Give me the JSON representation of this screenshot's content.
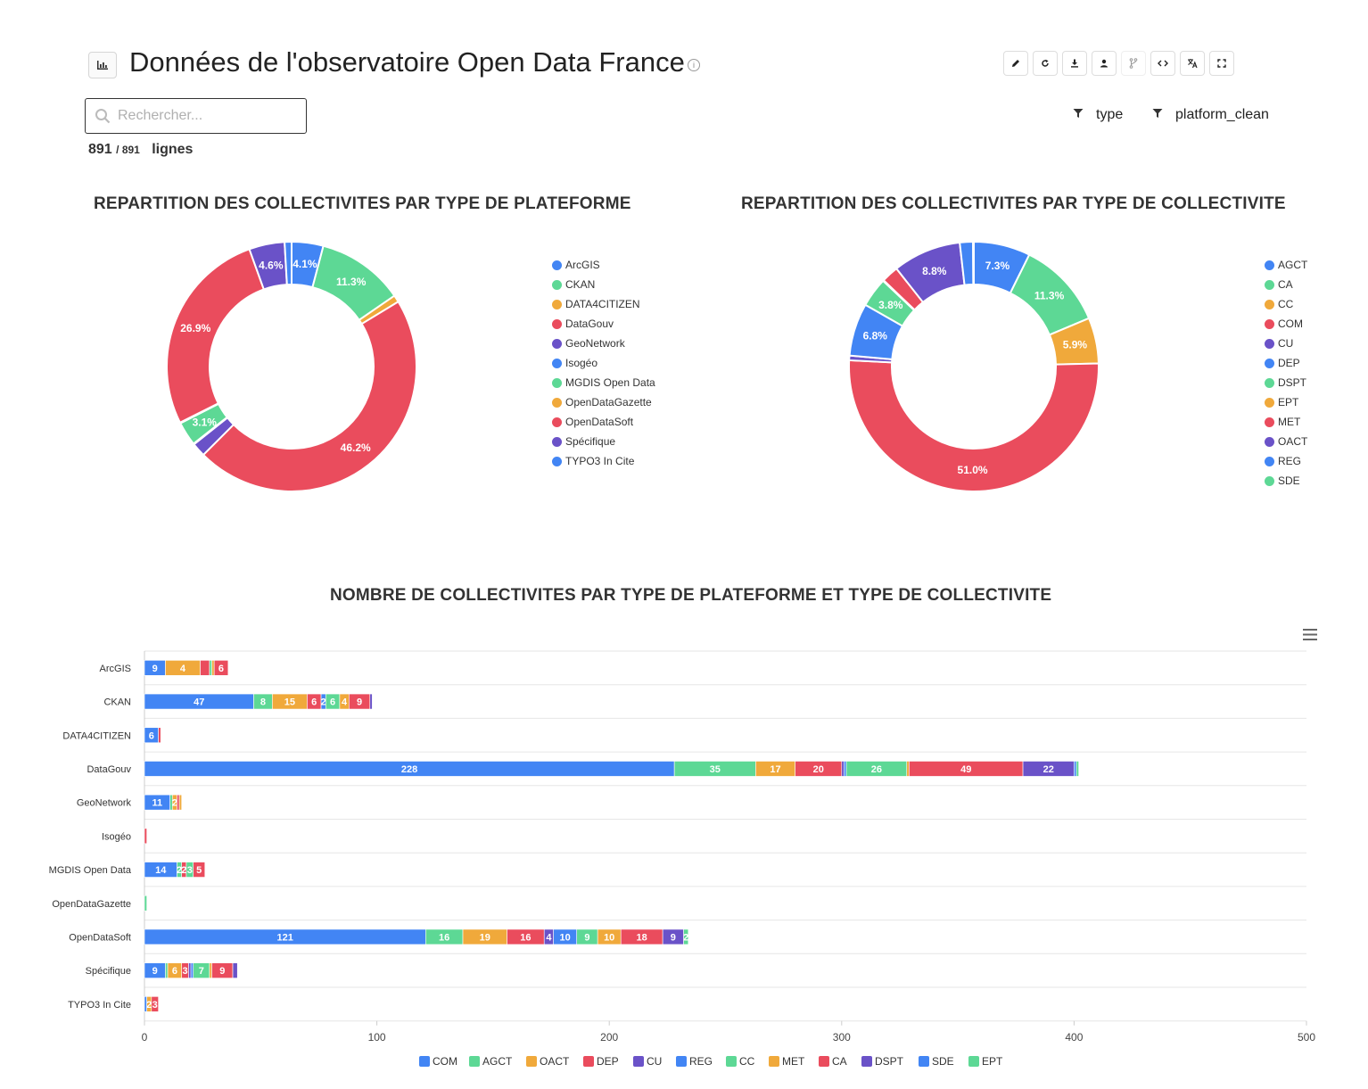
{
  "header": {
    "title": "Données de l'observatoire Open Data France",
    "info_glyph": "i",
    "chart_icon": "bar-chart-icon",
    "toolbar": [
      "edit-icon",
      "refresh-icon",
      "download-icon",
      "user-icon",
      "fork-icon",
      "code-icon",
      "translate-icon",
      "fullscreen-icon"
    ]
  },
  "search": {
    "placeholder": "Rechercher...",
    "value": ""
  },
  "rows": {
    "shown": "891",
    "total": "/ 891",
    "label": "lignes"
  },
  "filters": [
    "type",
    "platform_clean"
  ],
  "colors": {
    "blue": "#4285f4",
    "green": "#5dd895",
    "orange": "#f0a93b",
    "red": "#ea4c5d",
    "purple": "#6a52c8"
  },
  "chart_data": [
    {
      "type": "pie",
      "title": "REPARTITION DES COLLECTIVITES PAR TYPE DE PLATEFORME",
      "donut": true,
      "legend": "right",
      "labels": [
        "ArcGIS",
        "CKAN",
        "DATA4CITIZEN",
        "DataGouv",
        "GeoNetwork",
        "Isogéo",
        "MGDIS Open Data",
        "OpenDataGazette",
        "OpenDataSoft",
        "Spécifique",
        "TYPO3 In Cite"
      ],
      "values": [
        4.1,
        11.3,
        0.9,
        46.2,
        1.8,
        0.1,
        3.1,
        0.1,
        26.9,
        4.6,
        0.9
      ],
      "value_labels": [
        "4.1%",
        "11.3%",
        "",
        "46.2%",
        "",
        "",
        "3.1%",
        "",
        "26.9%",
        "4.6%",
        ""
      ],
      "colors": [
        "#4285f4",
        "#5dd895",
        "#f0a93b",
        "#ea4c5d",
        "#6a52c8",
        "#4285f4",
        "#5dd895",
        "#f0a93b",
        "#ea4c5d",
        "#6a52c8",
        "#4285f4"
      ]
    },
    {
      "type": "pie",
      "title": "REPARTITION DES COLLECTIVITES PAR TYPE DE COLLECTIVITE",
      "donut": true,
      "legend": "right",
      "labels": [
        "AGCT",
        "CA",
        "CC",
        "COM",
        "CU",
        "DEP",
        "DSPT",
        "EPT",
        "MET",
        "OACT",
        "REG",
        "SDE"
      ],
      "values": [
        7.3,
        11.3,
        5.9,
        51.0,
        0.6,
        6.8,
        3.8,
        0.1,
        2.2,
        8.8,
        1.7,
        0.1
      ],
      "value_labels": [
        "7.3%",
        "11.3%",
        "5.9%",
        "51.0%",
        "",
        "6.8%",
        "3.8%",
        "",
        "",
        "8.8%",
        "",
        ""
      ],
      "colors": [
        "#4285f4",
        "#5dd895",
        "#f0a93b",
        "#ea4c5d",
        "#6a52c8",
        "#4285f4",
        "#5dd895",
        "#f0a93b",
        "#ea4c5d",
        "#6a52c8",
        "#4285f4",
        "#5dd895"
      ]
    },
    {
      "type": "bar",
      "orientation": "horizontal",
      "stacked": true,
      "title": "NOMBRE DE COLLECTIVITES PAR TYPE DE PLATEFORME ET TYPE DE COLLECTIVITE",
      "legend": "bottom",
      "categories": [
        "ArcGIS",
        "CKAN",
        "DATA4CITIZEN",
        "DataGouv",
        "GeoNetwork",
        "Isogéo",
        "MGDIS Open Data",
        "OpenDataGazette",
        "OpenDataSoft",
        "Spécifique",
        "TYPO3 In Cite"
      ],
      "xlim": [
        0,
        500
      ],
      "xticks": [
        0,
        100,
        200,
        300,
        400,
        500
      ],
      "series": [
        {
          "name": "COM",
          "color": "#4285f4",
          "values": [
            9,
            47,
            6,
            228,
            11,
            0,
            14,
            0,
            121,
            9,
            1
          ]
        },
        {
          "name": "AGCT",
          "color": "#5dd895",
          "values": [
            0,
            8,
            0,
            35,
            1,
            0,
            2,
            1,
            16,
            1,
            0
          ]
        },
        {
          "name": "OACT",
          "color": "#f0a93b",
          "values": [
            15,
            15,
            0,
            17,
            2,
            0,
            0,
            0,
            19,
            6,
            2
          ]
        },
        {
          "name": "DEP",
          "color": "#ea4c5d",
          "values": [
            4,
            6,
            1,
            20,
            1,
            1,
            2,
            0,
            16,
            3,
            3
          ]
        },
        {
          "name": "CU",
          "color": "#6a52c8",
          "values": [
            0,
            0,
            0,
            1,
            0,
            0,
            0,
            0,
            4,
            1,
            0
          ]
        },
        {
          "name": "REG",
          "color": "#4285f4",
          "values": [
            0,
            2,
            0,
            1,
            0,
            0,
            0,
            0,
            10,
            1,
            0
          ]
        },
        {
          "name": "CC",
          "color": "#5dd895",
          "values": [
            1,
            6,
            0,
            26,
            0,
            0,
            3,
            0,
            9,
            7,
            0
          ]
        },
        {
          "name": "MET",
          "color": "#f0a93b",
          "values": [
            1,
            4,
            0,
            1,
            1,
            0,
            0,
            0,
            10,
            1,
            0
          ]
        },
        {
          "name": "CA",
          "color": "#ea4c5d",
          "values": [
            6,
            9,
            0,
            49,
            0,
            0,
            5,
            0,
            18,
            9,
            0
          ]
        },
        {
          "name": "DSPT",
          "color": "#6a52c8",
          "values": [
            0,
            1,
            0,
            22,
            0,
            0,
            0,
            0,
            9,
            2,
            0
          ]
        },
        {
          "name": "SDE",
          "color": "#4285f4",
          "values": [
            0,
            0,
            0,
            1,
            0,
            0,
            0,
            0,
            0,
            0,
            0
          ]
        },
        {
          "name": "EPT",
          "color": "#5dd895",
          "values": [
            0,
            0,
            0,
            1,
            0,
            0,
            0,
            0,
            2,
            0,
            0
          ]
        }
      ],
      "bar_labels": {
        "ArcGIS": [
          "9",
          "15",
          "4",
          "",
          "",
          "",
          "",
          "",
          "6",
          "",
          "",
          ""
        ],
        "CKAN": [
          "47",
          "8",
          "15",
          "6",
          "",
          "2",
          "6",
          "4",
          "9",
          "",
          "",
          ""
        ],
        "DATA4CITIZEN": [
          "6",
          "",
          "",
          "",
          "",
          "",
          "",
          "",
          "",
          "",
          "",
          ""
        ],
        "DataGouv": [
          "228",
          "35",
          "17",
          "20",
          "",
          "",
          "26",
          "",
          "49",
          "22",
          "",
          ""
        ],
        "GeoNetwork": [
          "11",
          "",
          "2",
          "",
          "",
          "",
          "",
          "",
          "",
          "",
          "",
          ""
        ],
        "Isogéo": [
          "",
          "",
          "",
          "",
          "",
          "",
          "",
          "",
          "",
          "",
          "",
          ""
        ],
        "MGDIS Open Data": [
          "14",
          "2",
          "",
          "2",
          "",
          "",
          "3",
          "",
          "5",
          "",
          "",
          ""
        ],
        "OpenDataGazette": [
          "",
          "",
          "",
          "",
          "",
          "",
          "",
          "",
          "",
          "",
          "",
          ""
        ],
        "OpenDataSoft": [
          "121",
          "16",
          "19",
          "16",
          "4",
          "10",
          "9",
          "10",
          "18",
          "9",
          "",
          "2"
        ],
        "Spécifique": [
          "9",
          "",
          "6",
          "3",
          "",
          "",
          "7",
          "",
          "9",
          "",
          "",
          ""
        ],
        "TYPO3 In Cite": [
          "",
          "",
          "2",
          "3",
          "",
          "",
          "",
          "",
          "",
          "",
          "",
          ""
        ]
      }
    }
  ]
}
